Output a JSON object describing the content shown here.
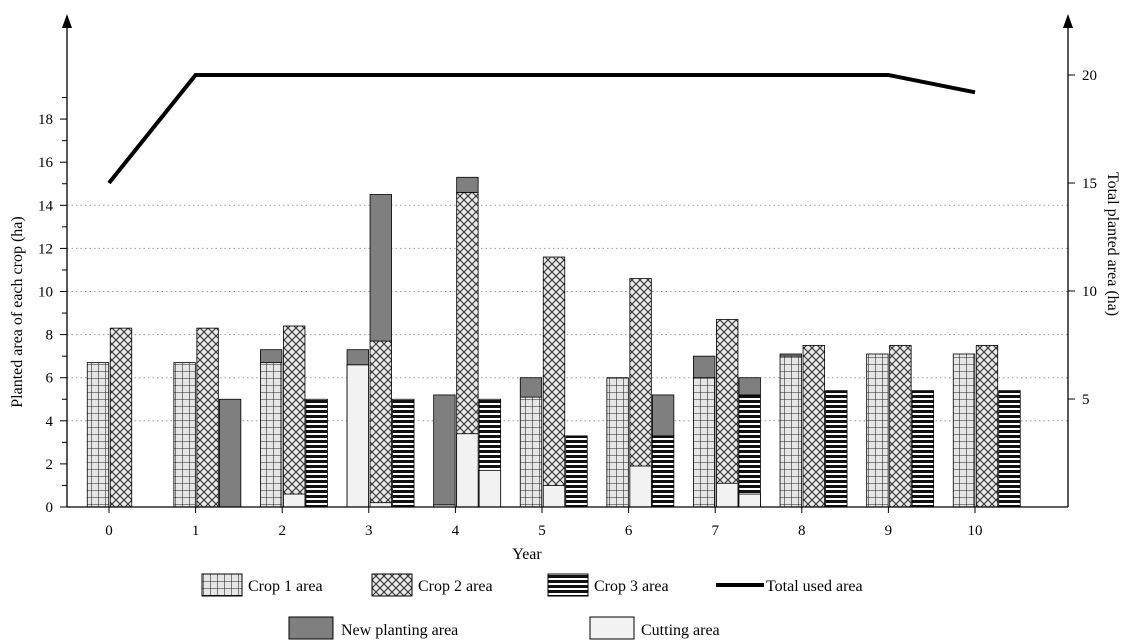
{
  "chart_data": {
    "type": "bar",
    "title": "",
    "xlabel": "Year",
    "ylabel": "Planted area of each crop (ha)",
    "y2label": "Total planted area (ha)",
    "ylim": [
      0,
      20
    ],
    "y2lim": [
      0,
      22.5
    ],
    "categories": [
      "0",
      "1",
      "2",
      "3",
      "4",
      "5",
      "6",
      "7",
      "8",
      "9",
      "10"
    ],
    "yticks": [
      "0",
      "2",
      "4",
      "6",
      "8",
      "10",
      "12",
      "14",
      "16",
      "18"
    ],
    "y2ticks": [
      "5",
      "10",
      "15",
      "20"
    ],
    "grid": "horizontal dotted",
    "legend_position": "bottom",
    "series": [
      {
        "name": "Crop 1 area",
        "pattern": "grid",
        "values": [
          6.7,
          6.7,
          6.7,
          6.6,
          0.1,
          5.1,
          6.0,
          6.0,
          7.0,
          7.1,
          7.1
        ],
        "new_planting": [
          0,
          0,
          0.6,
          0.7,
          5.1,
          0.9,
          0,
          1.0,
          0.1,
          0,
          0
        ],
        "cutting": [
          0,
          0,
          0,
          6.6,
          0.1,
          0,
          0,
          0,
          0,
          0,
          0
        ]
      },
      {
        "name": "Crop 2 area",
        "pattern": "crosshatch",
        "values": [
          8.3,
          8.3,
          8.4,
          7.7,
          14.6,
          11.6,
          10.6,
          8.7,
          7.5,
          7.5,
          7.5
        ],
        "new_planting": [
          0,
          0,
          0,
          6.8,
          0.7,
          0,
          0,
          0,
          0,
          0,
          0
        ],
        "cutting": [
          0,
          0,
          0.6,
          0.2,
          3.4,
          1.0,
          1.9,
          1.1,
          0,
          0,
          0
        ]
      },
      {
        "name": "Crop 3 area",
        "pattern": "horizontal-lines",
        "values": [
          0,
          0,
          5.0,
          5.0,
          5.0,
          3.3,
          3.3,
          5.2,
          5.4,
          5.4,
          5.4
        ],
        "new_planting": [
          0,
          5.0,
          0,
          0,
          0,
          0,
          1.9,
          0.8,
          0,
          0,
          0
        ],
        "cutting": [
          0,
          0,
          0,
          0,
          1.7,
          0,
          0,
          0.6,
          0,
          0,
          0
        ]
      },
      {
        "name": "Total used area",
        "axis": "right",
        "type": "line",
        "values": [
          15,
          20,
          20,
          20,
          20,
          20,
          20,
          20,
          20,
          20,
          19.2
        ]
      }
    ]
  },
  "legend": {
    "crop1": "Crop 1 area",
    "crop2": "Crop 2 area",
    "crop3": "Crop 3 area",
    "total": "Total used area",
    "new_planting": "New planting area",
    "cutting": "Cutting area"
  },
  "colors": {
    "crop_fill": "#d9d9d9",
    "new_planting": "#7f7f7f",
    "cutting": "#f2f2f2",
    "line": "#000000"
  }
}
